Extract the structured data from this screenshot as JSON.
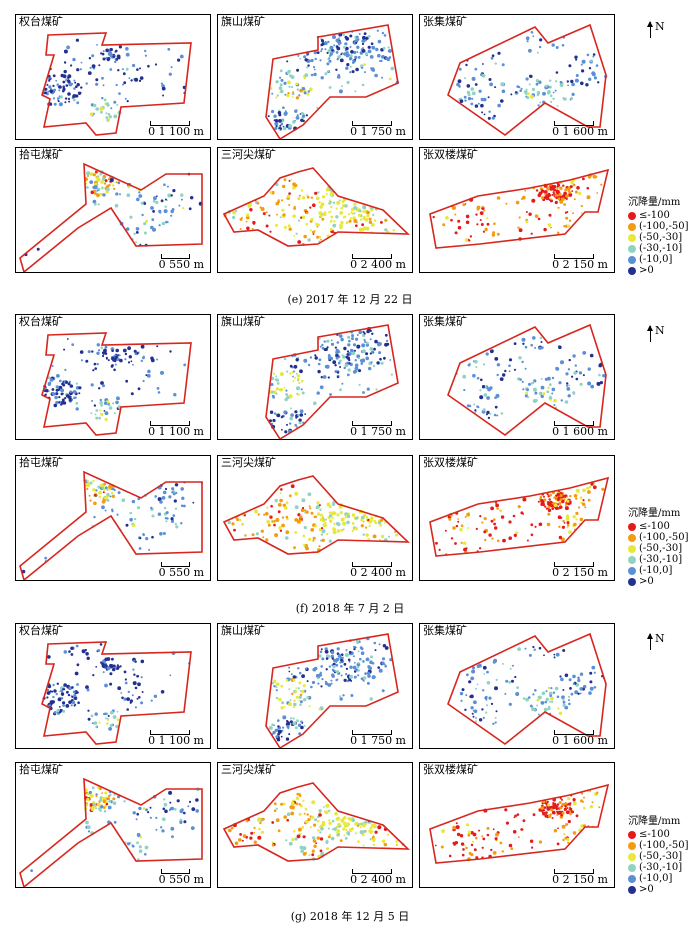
{
  "groups": [
    {
      "caption": "(e) 2017 年 12 月 22 日",
      "panels": [
        {
          "name": "权台煤矿",
          "scale": "0   1 100 m"
        },
        {
          "name": "旗山煤矿",
          "scale": "0   1 750 m"
        },
        {
          "name": "张集煤矿",
          "scale": "0   1 600 m"
        },
        {
          "name": "拾屯煤矿",
          "scale": "0   550 m"
        },
        {
          "name": "三河尖煤矿",
          "scale": "0   2 400 m"
        },
        {
          "name": "张双楼煤矿",
          "scale": "0   2 150 m"
        }
      ]
    },
    {
      "caption": "(f) 2018 年 7 月 2 日",
      "panels": [
        {
          "name": "权台煤矿",
          "scale": "0   1 100 m"
        },
        {
          "name": "旗山煤矿",
          "scale": "0   1 750 m"
        },
        {
          "name": "张集煤矿",
          "scale": "0   1 600 m"
        },
        {
          "name": "拾屯煤矿",
          "scale": "0   550 m"
        },
        {
          "name": "三河尖煤矿",
          "scale": "0   2 400 m"
        },
        {
          "name": "张双楼煤矿",
          "scale": "0   2 150 m"
        }
      ]
    },
    {
      "caption": "(g) 2018 年 12 月 5 日",
      "panels": [
        {
          "name": "权台煤矿",
          "scale": "0   1 100 m"
        },
        {
          "name": "旗山煤矿",
          "scale": "0   1 750 m"
        },
        {
          "name": "张集煤矿",
          "scale": "0   1 600 m"
        },
        {
          "name": "拾屯煤矿",
          "scale": "0   550 m"
        },
        {
          "name": "三河尖煤矿",
          "scale": "0   2 400 m"
        },
        {
          "name": "张双楼煤矿",
          "scale": "0   2 150 m"
        }
      ]
    }
  ],
  "north": "N",
  "legend": {
    "title": "沉降量/mm",
    "items": [
      {
        "label": "≤-100",
        "color": "#e41a1c"
      },
      {
        "label": "(-100,-50]",
        "color": "#f39c12"
      },
      {
        "label": "(-50,-30]",
        "color": "#e8e83a"
      },
      {
        "label": "(-30,-10]",
        "color": "#8fd3c4"
      },
      {
        "label": "(-10,0]",
        "color": "#5b8fd6"
      },
      {
        "label": ">0",
        "color": "#23308f"
      }
    ]
  },
  "boundary_color": "#d7261e"
}
